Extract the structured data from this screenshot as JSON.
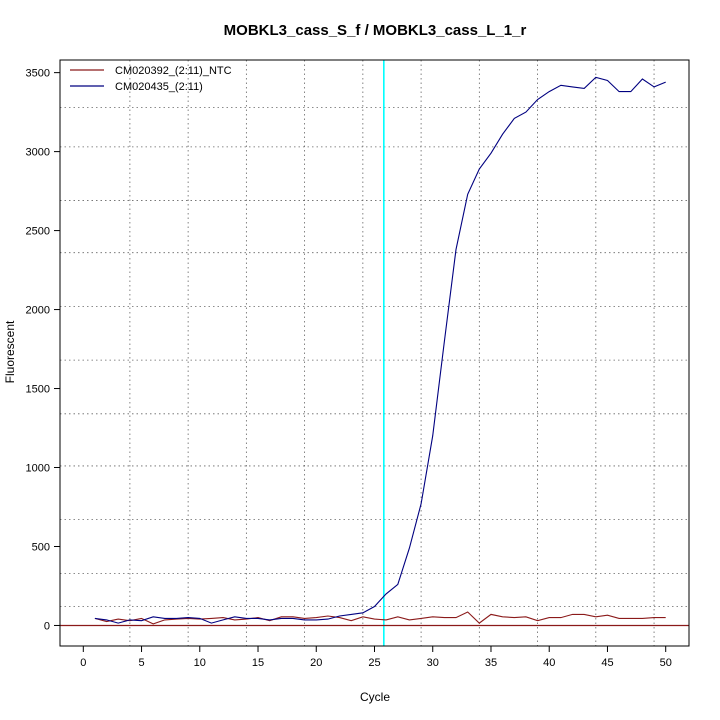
{
  "chart_data": {
    "type": "line",
    "title": "MOBKL3_cass_S_f / MOBKL3_cass_L_1_r",
    "xlabel": "Cycle",
    "ylabel": "Fluorescent",
    "xlim": [
      -2,
      52
    ],
    "ylim": [
      -130,
      3580
    ],
    "x_ticks": [
      0,
      5,
      10,
      15,
      20,
      25,
      30,
      35,
      40,
      45,
      50
    ],
    "y_ticks": [
      0,
      500,
      1000,
      1500,
      2000,
      2500,
      3000,
      3500
    ],
    "x_grid": [
      4,
      9,
      14,
      19,
      24,
      29,
      34,
      39,
      44,
      49
    ],
    "y_grid": [
      -130,
      120,
      330,
      670,
      1010,
      1340,
      1680,
      2020,
      2360,
      2690,
      3030,
      3280
    ],
    "grid": true,
    "legend_position": "top-left",
    "threshold": {
      "x": 25.8,
      "color": "#00ffff"
    },
    "baseline": {
      "y": 0,
      "color": "#8b1a1a"
    },
    "x": [
      1,
      2,
      3,
      4,
      5,
      6,
      7,
      8,
      9,
      10,
      11,
      12,
      13,
      14,
      15,
      16,
      17,
      18,
      19,
      20,
      21,
      22,
      23,
      24,
      25,
      26,
      27,
      28,
      29,
      30,
      31,
      32,
      33,
      34,
      35,
      36,
      37,
      38,
      39,
      40,
      41,
      42,
      43,
      44,
      45,
      46,
      47,
      48,
      49,
      50
    ],
    "series": [
      {
        "name": "CM020392_(2:11)_NTC",
        "color": "#8b1a1a",
        "values": [
          45,
          25,
          40,
          30,
          45,
          10,
          35,
          40,
          45,
          40,
          45,
          50,
          35,
          40,
          50,
          30,
          55,
          55,
          45,
          50,
          60,
          50,
          30,
          55,
          40,
          35,
          55,
          35,
          45,
          55,
          50,
          50,
          85,
          15,
          70,
          55,
          50,
          55,
          30,
          50,
          50,
          70,
          70,
          55,
          65,
          45,
          45,
          45,
          50,
          50
        ]
      },
      {
        "name": "CM020435_(2:11)",
        "color": "#000080",
        "values": [
          45,
          35,
          15,
          35,
          30,
          55,
          45,
          45,
          50,
          45,
          15,
          35,
          55,
          45,
          45,
          35,
          45,
          45,
          35,
          35,
          40,
          60,
          70,
          80,
          120,
          200,
          260,
          490,
          770,
          1200,
          1800,
          2380,
          2730,
          2890,
          2990,
          3110,
          3210,
          3250,
          3330,
          3380,
          3420,
          3410,
          3400,
          3470,
          3450,
          3380,
          3380,
          3460,
          3410,
          3440
        ]
      }
    ]
  }
}
